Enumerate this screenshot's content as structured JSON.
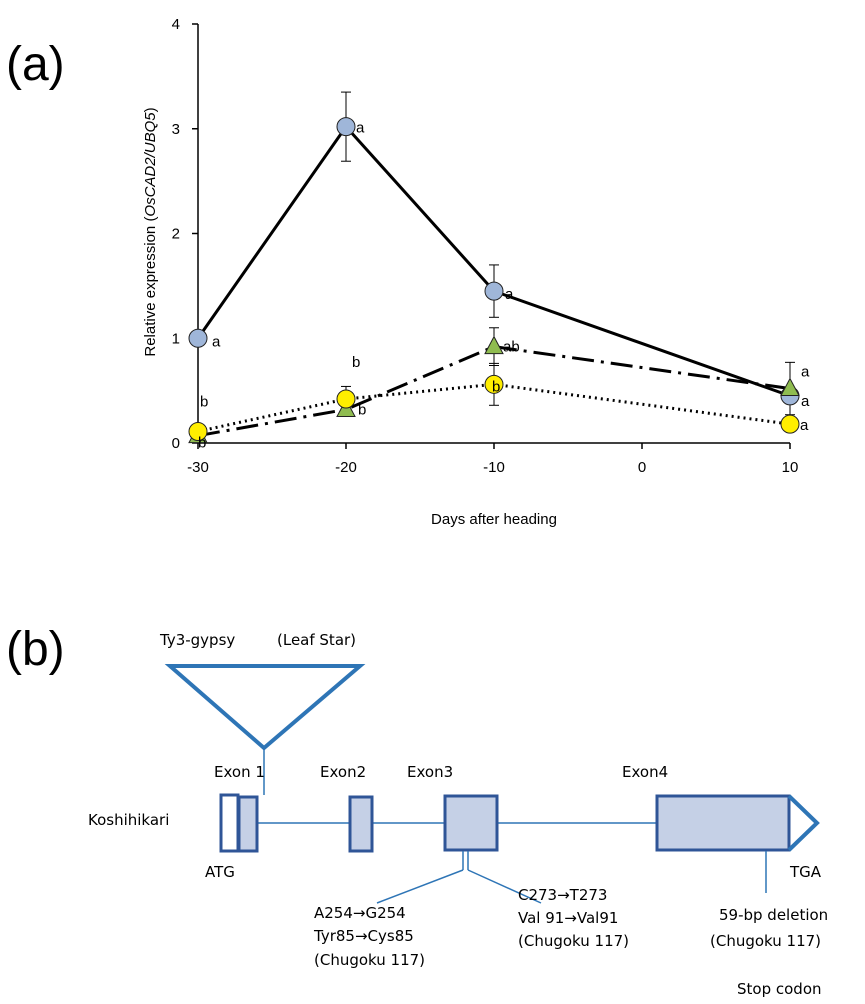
{
  "panel_a": {
    "label": "(a)",
    "chart_data": {
      "type": "line",
      "x": [
        -30,
        -20,
        -10,
        10
      ],
      "xlabel": "Days after heading",
      "ylabel_prefix": "Relative expression (",
      "ylabel_italic": "OsCAD2/UBQ5",
      "ylabel_suffix": ")",
      "xlim": [
        -30,
        10
      ],
      "ylim": [
        0,
        4
      ],
      "xticks": [
        "-30",
        "-20",
        "-10",
        "0",
        "10"
      ],
      "yticks": [
        "0",
        "1",
        "2",
        "3",
        "4"
      ],
      "grid": false,
      "legend": "none",
      "series": [
        {
          "style": "solid",
          "marker": "circle",
          "marker_color": "#9fb6d9",
          "values": [
            1.0,
            3.02,
            1.45,
            0.45
          ],
          "errors": [
            0,
            0.33,
            0.25,
            0.05
          ],
          "letters": [
            "a",
            "a",
            "a",
            "a"
          ]
        },
        {
          "style": "dashdot",
          "marker": "triangle",
          "marker_color": "#8fbc50",
          "values": [
            0.07,
            0.32,
            0.92,
            0.52
          ],
          "errors": [
            0,
            0.03,
            0.18,
            0.25
          ],
          "letters": [
            "b",
            "b",
            "ab",
            "a"
          ]
        },
        {
          "style": "dotted",
          "marker": "circle",
          "marker_color": "#ffee00",
          "values": [
            0.11,
            0.42,
            0.56,
            0.18
          ],
          "errors": [
            0,
            0.12,
            0.2,
            0.05
          ],
          "letters": [
            "b",
            "b",
            "b",
            "a"
          ]
        }
      ]
    }
  },
  "panel_b": {
    "label": "(b)",
    "insertion_label": "Ty3-gypsy",
    "insertion_cultivar": "(Leaf Star)",
    "cultivar": "Koshihikari",
    "exon_labels": [
      "Exon 1",
      "Exon2",
      "Exon3",
      "Exon4"
    ],
    "start_codon": "ATG",
    "stop_codon_label": "TGA",
    "mutation1": [
      "A254→G254",
      "Tyr85→Cys85",
      "(Chugoku 117)"
    ],
    "mutation2": [
      "C273→T273",
      "Val 91→Val91",
      "(Chugoku 117)"
    ],
    "deletion": [
      "59-bp deletion",
      "(Chugoku 117)"
    ],
    "stop_codon": "Stop codon",
    "colors": {
      "gene": "#2f5597",
      "fill": "#c5d0e6",
      "insertion": "#2e75b6"
    }
  }
}
